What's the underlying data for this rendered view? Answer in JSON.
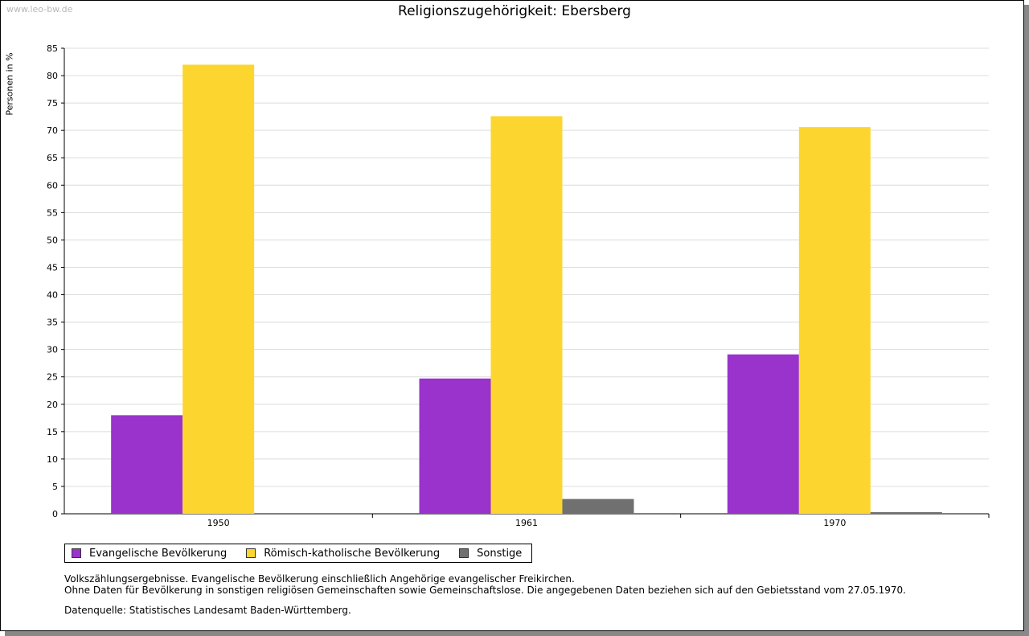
{
  "watermark": "www.leo-bw.de",
  "chart_data": {
    "type": "bar",
    "title": "Religionszugehörigkeit: Ebersberg",
    "xlabel": "",
    "ylabel": "Personen in %",
    "ylim": [
      0,
      85
    ],
    "yticks": [
      "0",
      "5",
      "10",
      "15",
      "20",
      "25",
      "30",
      "35",
      "40",
      "45",
      "50",
      "55",
      "60",
      "65",
      "70",
      "75",
      "80",
      "85"
    ],
    "grid": true,
    "categories": [
      "1950",
      "1961",
      "1970"
    ],
    "series": [
      {
        "name": "Evangelische Bevölkerung",
        "color": "#9933cc",
        "values": [
          18.0,
          24.7,
          29.1
        ]
      },
      {
        "name": "Römisch-katholische Bevölkerung",
        "color": "#fcd62e",
        "values": [
          82.0,
          72.6,
          70.6
        ]
      },
      {
        "name": "Sonstige",
        "color": "#707070",
        "values": [
          0,
          2.7,
          0.3
        ]
      }
    ],
    "legend_position": "bottom-left"
  },
  "notes": {
    "line1": "Volkszählungsergebnisse. Evangelische Bevölkerung einschließlich Angehörige evangelischer Freikirchen.",
    "line2": "Ohne Daten für Bevölkerung in sonstigen religiösen Gemeinschaften sowie Gemeinschaftslose. Die angegebenen Daten beziehen sich auf den Gebietsstand vom 27.05.1970.",
    "source": "Datenquelle: Statistisches Landesamt Baden-Württemberg."
  }
}
